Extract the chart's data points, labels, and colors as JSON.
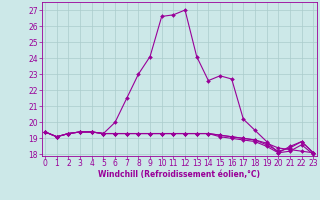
{
  "xlabel": "Windchill (Refroidissement éolien,°C)",
  "background_color": "#cce8e8",
  "grid_color": "#aacccc",
  "line_color": "#990099",
  "hours": [
    0,
    1,
    2,
    3,
    4,
    5,
    6,
    7,
    8,
    9,
    10,
    11,
    12,
    13,
    14,
    15,
    16,
    17,
    18,
    19,
    20,
    21,
    22,
    23
  ],
  "series": [
    [
      19.4,
      19.1,
      19.3,
      19.4,
      19.4,
      19.3,
      20.0,
      21.5,
      23.0,
      24.1,
      26.6,
      26.7,
      27.0,
      24.1,
      22.6,
      22.9,
      22.7,
      20.2,
      19.5,
      18.8,
      18.1,
      18.5,
      18.8,
      18.1
    ],
    [
      19.4,
      19.1,
      19.3,
      19.4,
      19.4,
      19.3,
      19.3,
      19.3,
      19.3,
      19.3,
      19.3,
      19.3,
      19.3,
      19.3,
      19.3,
      19.2,
      19.1,
      19.0,
      18.9,
      18.7,
      18.4,
      18.3,
      18.2,
      18.1
    ],
    [
      19.4,
      19.1,
      19.3,
      19.4,
      19.4,
      19.3,
      19.3,
      19.3,
      19.3,
      19.3,
      19.3,
      19.3,
      19.3,
      19.3,
      19.3,
      19.2,
      19.1,
      19.0,
      18.9,
      18.6,
      18.2,
      18.4,
      18.8,
      18.1
    ],
    [
      19.4,
      19.1,
      19.3,
      19.4,
      19.4,
      19.3,
      19.3,
      19.3,
      19.3,
      19.3,
      19.3,
      19.3,
      19.3,
      19.3,
      19.3,
      19.1,
      19.0,
      18.9,
      18.8,
      18.5,
      18.1,
      18.2,
      18.6,
      18.0
    ]
  ],
  "ylim": [
    17.9,
    27.5
  ],
  "yticks": [
    18,
    19,
    20,
    21,
    22,
    23,
    24,
    25,
    26,
    27
  ],
  "xlim": [
    -0.3,
    23.3
  ],
  "xticks": [
    0,
    1,
    2,
    3,
    4,
    5,
    6,
    7,
    8,
    9,
    10,
    11,
    12,
    13,
    14,
    15,
    16,
    17,
    18,
    19,
    20,
    21,
    22,
    23
  ],
  "marker": "D",
  "markersize": 2.0,
  "linewidth": 0.8,
  "fontsize_tick": 5.5,
  "fontsize_xlabel": 5.5
}
